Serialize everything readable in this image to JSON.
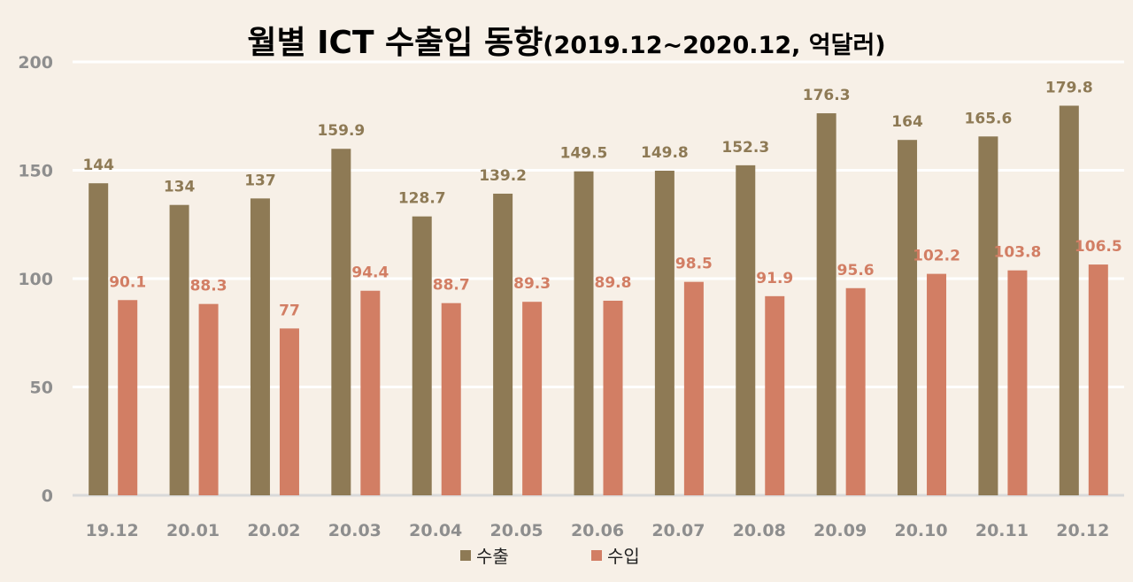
{
  "chart_data": {
    "type": "bar",
    "title": "월별 ICT 수출입 동향",
    "subtitle": "(2019.12~2020.12, 억달러)",
    "categories": [
      "19.12",
      "20.01",
      "20.02",
      "20.03",
      "20.04",
      "20.05",
      "20.06",
      "20.07",
      "20.08",
      "20.09",
      "20.10",
      "20.11",
      "20.12"
    ],
    "series": [
      {
        "name": "수출",
        "color": "#8E7A55",
        "values": [
          144,
          134,
          137,
          159.9,
          128.7,
          139.2,
          149.5,
          149.8,
          152.3,
          176.3,
          164,
          165.6,
          179.8
        ]
      },
      {
        "name": "수입",
        "color": "#D27E64",
        "values": [
          90.1,
          88.3,
          77,
          94.4,
          88.7,
          89.3,
          89.8,
          98.5,
          91.9,
          95.6,
          102.2,
          103.8,
          106.5
        ]
      }
    ],
    "yticks": [
      "0",
      "50",
      "100",
      "150",
      "200"
    ],
    "ylim": [
      0,
      200
    ],
    "grid": true,
    "legend": "bottom",
    "xlabel": "",
    "ylabel": ""
  }
}
